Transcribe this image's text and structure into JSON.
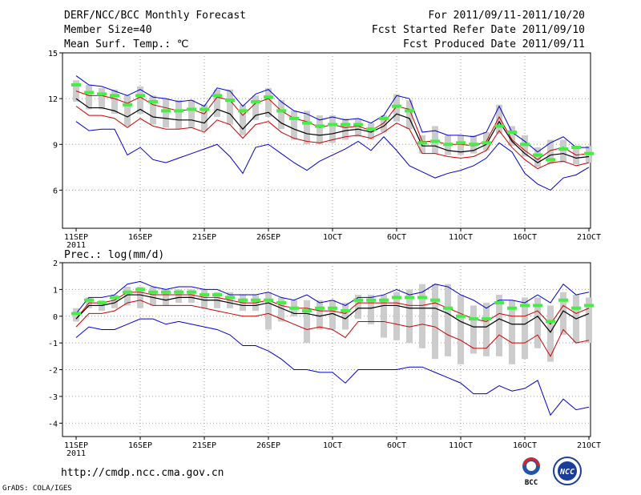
{
  "header": {
    "line1_left": "DERF/NCC/BCC Monthly Forecast",
    "line2_left": "Member Size=40",
    "line3_left": "Mean Surf. Temp.: ℃",
    "line1_right": "For 2011/09/11-2011/10/20",
    "line2_right": "Fcst Started Refer Date 2011/09/10",
    "line3_right": "Fcst Produced Date 2011/09/11"
  },
  "footer": {
    "url": "http://cmdp.ncc.cma.gov.cn",
    "credit": "GrADS: COLA/IGES"
  },
  "logos": {
    "bcc": "BCC",
    "ncc": "NCC"
  },
  "colors": {
    "grid": "#999999",
    "box": "#cccccc",
    "median": "#44ee44",
    "max_min": "#0000cc",
    "spread": "#cc0000",
    "mean": "#000000"
  },
  "chart_data": [
    {
      "type": "line",
      "title": "Mean Surf. Temp.: ℃",
      "x_start_day": 1,
      "x_ticks": [
        1,
        6,
        11,
        16,
        21,
        26,
        31,
        36,
        41
      ],
      "x_tick_labels": [
        "11SEP",
        "16SEP",
        "21SEP",
        "26SEP",
        "1OCT",
        "6OCT",
        "11OCT",
        "16OCT",
        "21OCT"
      ],
      "x_sub_label": "2011",
      "ylim": [
        3.5,
        15
      ],
      "yticks": [
        6,
        9,
        12,
        15
      ],
      "ytick_labels": [
        "6",
        "9",
        "12",
        "15"
      ],
      "max": [
        13.5,
        12.9,
        12.8,
        12.5,
        12.2,
        12.6,
        12.1,
        12.0,
        11.8,
        11.9,
        11.5,
        12.7,
        12.5,
        11.5,
        12.3,
        12.6,
        11.8,
        11.2,
        11.0,
        10.6,
        10.8,
        10.6,
        10.7,
        10.4,
        10.9,
        12.2,
        12.0,
        9.8,
        9.9,
        9.6,
        9.6,
        9.5,
        9.8,
        11.5,
        9.8,
        9.2,
        8.5,
        9.1,
        9.5,
        8.8,
        8.8
      ],
      "p75": [
        12.5,
        12.2,
        12.2,
        12.0,
        11.7,
        12.1,
        11.6,
        11.4,
        11.2,
        11.3,
        11.0,
        12.1,
        11.9,
        10.9,
        11.7,
        12.0,
        11.2,
        10.7,
        10.5,
        10.1,
        10.3,
        10.1,
        10.2,
        9.9,
        10.4,
        11.5,
        11.3,
        9.2,
        9.2,
        9.0,
        9.0,
        8.9,
        9.2,
        10.8,
        9.3,
        8.6,
        8.0,
        8.6,
        8.8,
        8.3,
        8.4
      ],
      "mean": [
        12.0,
        11.4,
        11.4,
        11.2,
        10.8,
        11.3,
        10.8,
        10.7,
        10.6,
        10.6,
        10.4,
        11.3,
        11.0,
        10.0,
        10.9,
        11.1,
        10.4,
        10.0,
        9.7,
        9.6,
        9.7,
        9.9,
        10.0,
        9.8,
        10.2,
        11.0,
        10.7,
        8.9,
        8.9,
        8.6,
        8.5,
        8.6,
        9.0,
        10.5,
        9.2,
        8.4,
        7.8,
        8.3,
        8.4,
        8.1,
        8.2
      ],
      "p25": [
        11.5,
        10.9,
        10.9,
        10.7,
        10.1,
        10.7,
        10.2,
        10.0,
        10.0,
        10.1,
        9.8,
        10.6,
        10.3,
        9.4,
        10.3,
        10.5,
        9.8,
        9.4,
        9.2,
        9.1,
        9.3,
        9.5,
        9.6,
        9.4,
        9.8,
        10.4,
        10.0,
        8.4,
        8.4,
        8.2,
        8.1,
        8.2,
        8.6,
        9.9,
        8.8,
        8.0,
        7.4,
        7.8,
        7.9,
        7.6,
        7.8
      ],
      "min": [
        10.5,
        9.9,
        10.0,
        10.0,
        8.3,
        8.8,
        8.0,
        7.8,
        8.1,
        8.4,
        8.7,
        9.0,
        8.2,
        7.1,
        8.8,
        9.0,
        8.4,
        7.8,
        7.3,
        7.9,
        8.3,
        8.7,
        9.2,
        8.6,
        9.5,
        8.6,
        7.6,
        7.2,
        6.8,
        7.1,
        7.3,
        7.6,
        8.1,
        9.1,
        8.5,
        7.1,
        6.4,
        6.0,
        6.8,
        7.0,
        7.5
      ],
      "median": [
        12.9,
        12.4,
        12.3,
        12.2,
        11.6,
        12.2,
        11.8,
        11.2,
        11.2,
        11.3,
        11.3,
        12.2,
        11.9,
        11.2,
        11.8,
        12.1,
        11.2,
        10.7,
        10.4,
        10.2,
        10.3,
        10.3,
        10.3,
        10.0,
        10.7,
        11.5,
        11.2,
        9.1,
        9.2,
        9.0,
        9.1,
        9.0,
        9.1,
        10.2,
        9.8,
        9.0,
        8.3,
        8.0,
        8.7,
        8.8,
        8.4
      ],
      "box_low": [
        11.8,
        11.3,
        11.3,
        11.0,
        10.2,
        11.0,
        10.3,
        10.1,
        10.0,
        10.1,
        9.9,
        10.8,
        10.3,
        9.6,
        10.6,
        10.8,
        10.0,
        9.3,
        9.0,
        9.0,
        9.1,
        9.3,
        9.5,
        9.3,
        9.8,
        10.5,
        10.0,
        8.4,
        8.4,
        8.3,
        8.3,
        8.4,
        8.6,
        9.7,
        8.9,
        8.2,
        7.5,
        7.7,
        7.8,
        7.7,
        7.8
      ],
      "box_high": [
        13.2,
        12.9,
        12.7,
        12.6,
        12.2,
        12.8,
        12.2,
        12.0,
        11.9,
        11.9,
        11.6,
        12.6,
        12.6,
        11.6,
        12.2,
        12.7,
        11.9,
        11.2,
        11.2,
        10.9,
        10.9,
        10.7,
        10.7,
        10.4,
        10.9,
        12.3,
        11.9,
        9.6,
        10.2,
        9.6,
        9.6,
        9.6,
        9.8,
        11.6,
        10.2,
        9.6,
        8.8,
        9.3,
        9.3,
        8.9,
        8.9
      ]
    },
    {
      "type": "line",
      "title": "Prec.: log(mm/d)",
      "x_start_day": 1,
      "x_ticks": [
        1,
        6,
        11,
        16,
        21,
        26,
        31,
        36,
        41
      ],
      "x_tick_labels": [
        "11SEP",
        "16SEP",
        "21SEP",
        "26SEP",
        "1OCT",
        "6OCT",
        "11OCT",
        "16OCT",
        "21OCT"
      ],
      "x_sub_label": "2011",
      "ylim": [
        -4.5,
        2
      ],
      "yticks": [
        -4,
        -3,
        -2,
        -1,
        0,
        1,
        2
      ],
      "ytick_labels": [
        "-4",
        "-3",
        "-2",
        "-1",
        "0",
        "1",
        "2"
      ],
      "max": [
        0.1,
        0.7,
        0.7,
        0.8,
        1.2,
        1.3,
        1.1,
        1.0,
        1.1,
        1.1,
        1.0,
        1.0,
        0.8,
        0.8,
        0.8,
        0.9,
        0.7,
        0.6,
        0.8,
        0.5,
        0.6,
        0.4,
        0.7,
        0.7,
        0.8,
        1.0,
        0.8,
        0.9,
        1.2,
        1.1,
        0.8,
        0.6,
        0.3,
        0.6,
        0.6,
        0.5,
        0.8,
        0.5,
        1.2,
        0.8,
        0.9
      ],
      "p75": [
        -0.1,
        0.5,
        0.5,
        0.6,
        0.9,
        0.9,
        0.8,
        0.8,
        0.8,
        0.8,
        0.7,
        0.7,
        0.6,
        0.5,
        0.5,
        0.6,
        0.4,
        0.3,
        0.3,
        0.2,
        0.2,
        0.1,
        0.5,
        0.5,
        0.5,
        0.5,
        0.4,
        0.4,
        0.5,
        0.3,
        0.1,
        -0.1,
        -0.2,
        0.1,
        0.0,
        0.0,
        0.2,
        -0.3,
        0.4,
        0.1,
        0.3
      ],
      "mean": [
        -0.1,
        0.4,
        0.4,
        0.5,
        0.8,
        0.8,
        0.7,
        0.6,
        0.7,
        0.7,
        0.6,
        0.6,
        0.5,
        0.4,
        0.4,
        0.5,
        0.3,
        0.1,
        0.1,
        0.0,
        0.1,
        -0.1,
        0.3,
        0.3,
        0.4,
        0.4,
        0.3,
        0.3,
        0.3,
        0.1,
        -0.2,
        -0.4,
        -0.4,
        -0.1,
        -0.3,
        -0.3,
        0.0,
        -0.6,
        0.2,
        -0.1,
        0.1
      ],
      "p25": [
        -0.4,
        0.1,
        0.1,
        0.2,
        0.5,
        0.6,
        0.4,
        0.4,
        0.4,
        0.4,
        0.3,
        0.2,
        0.1,
        0.0,
        0.0,
        0.1,
        -0.1,
        -0.3,
        -0.5,
        -0.4,
        -0.5,
        -0.8,
        -0.2,
        -0.2,
        -0.2,
        -0.3,
        -0.4,
        -0.3,
        -0.4,
        -0.7,
        -0.9,
        -1.2,
        -1.2,
        -0.7,
        -1.0,
        -1.0,
        -0.7,
        -1.5,
        -0.5,
        -1.0,
        -0.9
      ],
      "min": [
        -0.8,
        -0.4,
        -0.5,
        -0.5,
        -0.3,
        -0.1,
        -0.1,
        -0.3,
        -0.2,
        -0.3,
        -0.4,
        -0.5,
        -0.7,
        -1.1,
        -1.1,
        -1.3,
        -1.6,
        -2.0,
        -2.0,
        -2.1,
        -2.1,
        -2.5,
        -2.0,
        -2.0,
        -2.0,
        -2.0,
        -1.9,
        -1.9,
        -2.1,
        -2.3,
        -2.5,
        -2.9,
        -2.9,
        -2.6,
        -2.8,
        -2.7,
        -2.4,
        -3.7,
        -3.1,
        -3.5,
        -3.4
      ],
      "median": [
        0.1,
        0.6,
        0.5,
        0.7,
        0.9,
        1.0,
        0.9,
        0.9,
        0.9,
        0.9,
        0.8,
        0.8,
        0.7,
        0.6,
        0.6,
        0.6,
        0.5,
        0.3,
        0.2,
        0.3,
        0.3,
        0.2,
        0.6,
        0.6,
        0.6,
        0.7,
        0.7,
        0.7,
        0.6,
        0.3,
        0.0,
        -0.1,
        -0.1,
        0.5,
        0.3,
        0.4,
        0.4,
        -0.2,
        0.6,
        0.3,
        0.4
      ],
      "box_low": [
        -0.2,
        0.3,
        0.2,
        0.3,
        0.4,
        0.3,
        0.4,
        0.4,
        0.5,
        0.5,
        0.3,
        0.3,
        0.3,
        0.2,
        0.2,
        -0.5,
        -0.2,
        0.0,
        -1.0,
        -0.5,
        -0.5,
        -0.5,
        -0.1,
        -0.3,
        -0.8,
        -0.9,
        -1.0,
        -1.2,
        -1.6,
        -1.5,
        -1.8,
        -1.4,
        -1.5,
        -1.5,
        -1.8,
        -1.6,
        -1.2,
        -1.7,
        -0.7,
        -1.0,
        -1.0
      ],
      "box_high": [
        0.3,
        0.7,
        0.6,
        0.8,
        1.1,
        1.1,
        1.1,
        1.0,
        1.0,
        1.0,
        1.0,
        0.9,
        0.9,
        0.8,
        0.8,
        0.9,
        0.7,
        0.6,
        0.6,
        0.6,
        0.6,
        0.5,
        0.8,
        0.8,
        0.8,
        0.9,
        1.0,
        1.2,
        1.2,
        1.2,
        0.8,
        0.4,
        0.5,
        0.8,
        0.6,
        0.7,
        0.7,
        0.4,
        0.9,
        0.8,
        0.7
      ]
    }
  ]
}
